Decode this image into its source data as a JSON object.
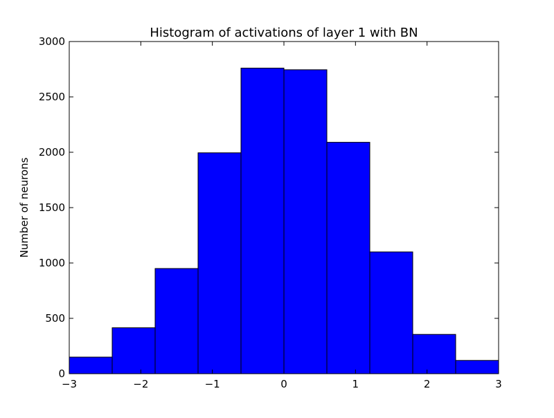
{
  "chart_data": {
    "type": "bar",
    "title": "Histogram of activations of layer 1  with BN",
    "xlabel": "",
    "ylabel": "Number of neurons",
    "bin_edges": [
      -3,
      -2.4,
      -1.8,
      -1.2,
      -0.6,
      0,
      0.6,
      1.2,
      1.8,
      2.4,
      3
    ],
    "values": [
      150,
      415,
      950,
      1995,
      2760,
      2745,
      2090,
      1100,
      355,
      120
    ],
    "xlim": [
      -3,
      3
    ],
    "ylim": [
      0,
      3000
    ],
    "xticks": [
      {
        "value": -3,
        "label": "−3"
      },
      {
        "value": -2,
        "label": "−2"
      },
      {
        "value": -1,
        "label": "−1"
      },
      {
        "value": 0,
        "label": "0"
      },
      {
        "value": 1,
        "label": "1"
      },
      {
        "value": 2,
        "label": "2"
      },
      {
        "value": 3,
        "label": "3"
      }
    ],
    "yticks": [
      {
        "value": 0,
        "label": "0"
      },
      {
        "value": 500,
        "label": "500"
      },
      {
        "value": 1000,
        "label": "1000"
      },
      {
        "value": 1500,
        "label": "1500"
      },
      {
        "value": 2000,
        "label": "2000"
      },
      {
        "value": 2500,
        "label": "2500"
      },
      {
        "value": 3000,
        "label": "3000"
      }
    ],
    "grid": false,
    "bar_color": "#0000ff",
    "edge_color": "#000000"
  }
}
